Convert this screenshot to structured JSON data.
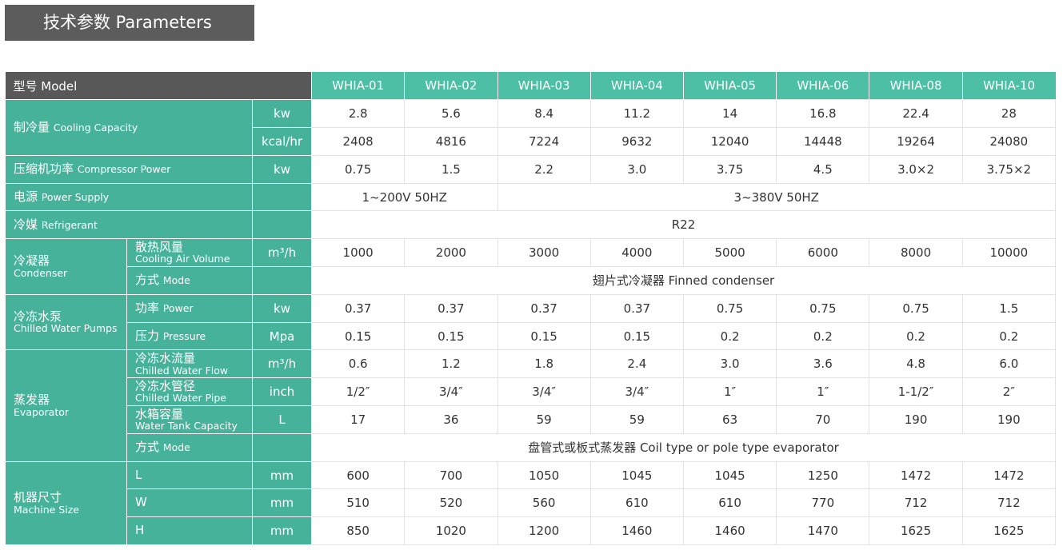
{
  "header": {
    "title": "技术参数 Parameters"
  },
  "table": {
    "model_label": "型号 Model",
    "models": [
      "WHIA-01",
      "WHIA-02",
      "WHIA-03",
      "WHIA-04",
      "WHIA-05",
      "WHIA-06",
      "WHIA-08",
      "WHIA-10"
    ],
    "groups": [
      {
        "zh": "制冷量",
        "en": "Cooling Capacity",
        "rows": [
          {
            "unit": "kw",
            "values": [
              "2.8",
              "5.6",
              "8.4",
              "11.2",
              "14",
              "16.8",
              "22.4",
              "28"
            ]
          },
          {
            "unit": "kcal/hr",
            "values": [
              "2408",
              "4816",
              "7224",
              "9632",
              "12040",
              "14448",
              "19264",
              "24080"
            ]
          }
        ]
      },
      {
        "zh": "压缩机功率",
        "en": "Compressor Power",
        "rows": [
          {
            "unit": "kw",
            "values": [
              "0.75",
              "1.5",
              "2.2",
              "3.0",
              "3.75",
              "4.5",
              "3.0×2",
              "3.75×2"
            ]
          }
        ]
      },
      {
        "zh": "电源",
        "en": "Power Supply",
        "rows": [
          {
            "merged": [
              "1~200V 50HZ",
              "3~380V 50HZ"
            ]
          }
        ]
      },
      {
        "zh": "冷媒",
        "en": "Refrigerant",
        "rows": [
          {
            "merged": [
              "R22"
            ]
          }
        ]
      },
      {
        "zh": "冷凝器",
        "en": "Condenser",
        "items": [
          {
            "zh": "散热风量",
            "en": "Cooling Air Volume",
            "unit": "m³/h",
            "values": [
              "1000",
              "2000",
              "3000",
              "4000",
              "5000",
              "6000",
              "8000",
              "10000"
            ]
          },
          {
            "zh": "方式",
            "en": "Mode",
            "merged": [
              "翅片式冷凝器 Finned condenser"
            ]
          }
        ]
      },
      {
        "zh": "冷冻水泵",
        "en": "Chilled Water Pumps",
        "items": [
          {
            "zh": "功率",
            "en": "Power",
            "unit": "kw",
            "values": [
              "0.37",
              "0.37",
              "0.37",
              "0.37",
              "0.75",
              "0.75",
              "0.75",
              "1.5"
            ]
          },
          {
            "zh": "压力",
            "en": "Pressure",
            "unit": "Mpa",
            "values": [
              "0.15",
              "0.15",
              "0.15",
              "0.15",
              "0.2",
              "0.2",
              "0.2",
              "0.2"
            ]
          }
        ]
      },
      {
        "zh": "蒸发器",
        "en": "Evaporator",
        "items": [
          {
            "zh": "冷冻水流量",
            "en": "Chilled Water Flow",
            "unit": "m³/h",
            "values": [
              "0.6",
              "1.2",
              "1.8",
              "2.4",
              "3.0",
              "3.6",
              "4.8",
              "6.0"
            ]
          },
          {
            "zh": "冷冻水管径",
            "en": "Chilled Water Pipe",
            "unit": "inch",
            "values": [
              "1/2″",
              "3/4″",
              "3/4″",
              "3/4″",
              "1″",
              "1″",
              "1-1/2″",
              "2″"
            ]
          },
          {
            "zh": "水箱容量",
            "en": "Water Tank Capacity",
            "unit": "L",
            "values": [
              "17",
              "36",
              "59",
              "59",
              "63",
              "70",
              "190",
              "190"
            ]
          },
          {
            "zh": "方式",
            "en": "Mode",
            "merged": [
              "盘管式或板式蒸发器 Coil type or pole type evaporator"
            ]
          }
        ]
      },
      {
        "zh": "机器尺寸",
        "en": "Machine Size",
        "items": [
          {
            "zh": "L",
            "unit": "mm",
            "values": [
              "600",
              "700",
              "1050",
              "1045",
              "1045",
              "1250",
              "1472",
              "1472"
            ]
          },
          {
            "zh": "W",
            "unit": "mm",
            "values": [
              "510",
              "520",
              "560",
              "610",
              "610",
              "770",
              "712",
              "712"
            ]
          },
          {
            "zh": "H",
            "unit": "mm",
            "values": [
              "850",
              "1020",
              "1200",
              "1460",
              "1460",
              "1470",
              "1625",
              "1625"
            ]
          }
        ]
      }
    ]
  }
}
